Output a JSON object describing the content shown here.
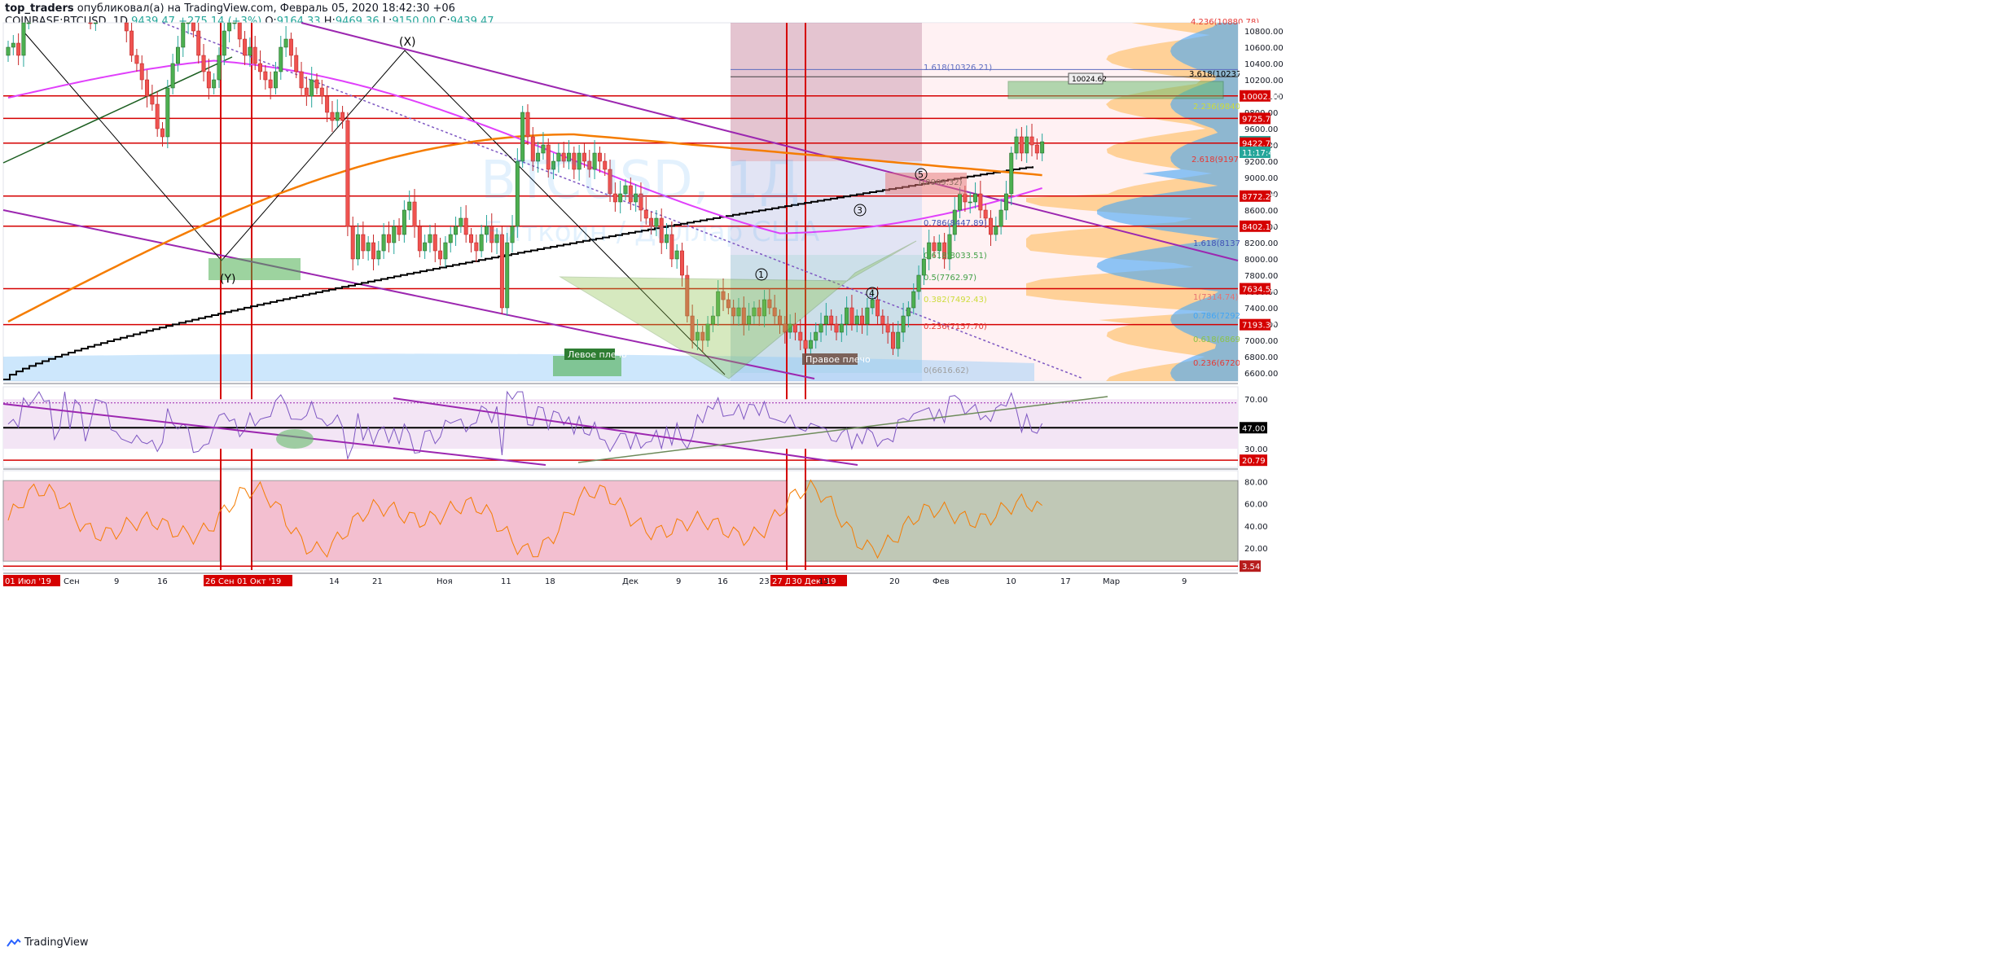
{
  "header": {
    "author": "top_traders",
    "published": "опубликовал(а) на TradingView.com, Февраль 05, 2020 18:42:30 +06",
    "symbol": "COINBASE:BTCUSD, 1D",
    "price": "9439.47",
    "change": "+275.14 (+3%)",
    "o_label": "O:",
    "o_value": "9164.33",
    "h_label": "H:",
    "h_value": "9469.36",
    "l_label": "L:",
    "l_value": "9150.00",
    "c_label": "C:",
    "c_value": "9439.47"
  },
  "footer": {
    "brand": "TradingView"
  },
  "colors": {
    "up": "#4caf50",
    "down": "#ef5350",
    "ma_orange": "#f57c00",
    "ma_magenta": "#e040fb",
    "trend_purple": "#9c27b0",
    "level_red": "#d50000",
    "rsi_bg": "#f3e5f5"
  },
  "watermark": {
    "line1": "BTCUSD, 1Д",
    "line2": "Биткоин / Доллар США"
  },
  "chart_data": [
    {
      "type": "candlestick",
      "panel": "price",
      "ylim": [
        6500,
        10900
      ],
      "y_ticks": [
        "10800.00",
        "10600.00",
        "10400.00",
        "10200.00",
        "10000.00",
        "9800.00",
        "9600.00",
        "9400.00",
        "9200.00",
        "9000.00",
        "8800.00",
        "8600.00",
        "8400.00",
        "8200.00",
        "8000.00",
        "7800.00",
        "7600.00",
        "7400.00",
        "7200.00",
        "7000.00",
        "6800.00",
        "6600.00"
      ],
      "x_ticks": [
        "01 Июл '19",
        "Сен",
        "9",
        "16",
        "26 Сен '19",
        "01 Окт '19",
        "14",
        "21",
        "Ноя",
        "11",
        "18",
        "Дек",
        "9",
        "16",
        "23",
        "27 Дек '19",
        "30 Дек '19",
        "13",
        "20",
        "Фев",
        "10",
        "17",
        "Мар",
        "9"
      ],
      "close": [
        10600,
        10650,
        10500,
        10900,
        11100,
        11400,
        11900,
        12100,
        12300,
        11700,
        11300,
        11800,
        11400,
        11600,
        11700,
        11100,
        10900,
        11200,
        11500,
        11800,
        11600,
        11400,
        11100,
        10800,
        10500,
        10400,
        10200,
        10000,
        9900,
        9600,
        9500,
        10100,
        10400,
        10600,
        10900,
        11100,
        10800,
        10500,
        10300,
        10100,
        10200,
        10500,
        10800,
        10900,
        11000,
        10700,
        10500,
        10600,
        10400,
        10300,
        10200,
        10100,
        10300,
        10600,
        10700,
        10500,
        10300,
        10100,
        10000,
        10200,
        10100,
        10000,
        9800,
        9700,
        9800,
        9700,
        8400,
        8000,
        8300,
        8100,
        8200,
        8000,
        8100,
        8300,
        8200,
        8400,
        8300,
        8600,
        8700,
        8400,
        8100,
        8200,
        8300,
        8100,
        8000,
        8200,
        8300,
        8400,
        8500,
        8300,
        8200,
        8100,
        8300,
        8400,
        8200,
        8300,
        7400,
        8200,
        8400,
        9200,
        9800,
        9500,
        9200,
        9300,
        9400,
        9100,
        9200,
        9300,
        9200,
        9300,
        9100,
        9300,
        9200,
        9100,
        9300,
        9200,
        9100,
        8800,
        8700,
        8800,
        8900,
        8700,
        8800,
        8600,
        8500,
        8400,
        8500,
        8200,
        8300,
        8000,
        8100,
        7800,
        7300,
        7000,
        7100,
        7000,
        7200,
        7300,
        7600,
        7500,
        7400,
        7300,
        7400,
        7200,
        7300,
        7400,
        7300,
        7500,
        7400,
        7300,
        7200,
        7100,
        7200,
        7100,
        7000,
        6900,
        7000,
        7100,
        7200,
        7300,
        7200,
        7100,
        7200,
        7400,
        7200,
        7300,
        7200,
        7400,
        7500,
        7300,
        7200,
        7100,
        6900,
        7100,
        7300,
        7400,
        7600,
        7800,
        8000,
        8200,
        8100,
        8200,
        8000,
        8300,
        8600,
        8800,
        8700,
        8700,
        8800,
        8600,
        8500,
        8300,
        8400,
        8600,
        8800,
        9300,
        9500,
        9300,
        9500,
        9400,
        9300,
        9439.47
      ],
      "levels": [
        {
          "value": 10002.4,
          "label": "10002.40",
          "color": "#d50000"
        },
        {
          "value": 9725.74,
          "label": "9725.74",
          "color": "#d50000"
        },
        {
          "value": 9439.47,
          "label": "9439.47",
          "color": "#26a69a"
        },
        {
          "value": 9422.72,
          "label": "9422.72",
          "color": "#d50000"
        },
        {
          "value": 8772.29,
          "label": "8772.29",
          "color": "#d50000"
        },
        {
          "value": 8402.17,
          "label": "8402.17",
          "color": "#d50000"
        },
        {
          "value": 7634.58,
          "label": "7634.58",
          "color": "#d50000"
        },
        {
          "value": 7193.37,
          "label": "7193.37",
          "color": "#d50000"
        }
      ],
      "countdown": "11:17:41",
      "fib_labels": [
        "4.236(10880.78)",
        "1.618(10326.21)",
        "3.618(10237.93)",
        "2.236(9840.38)",
        "2.618(9197.73)",
        "1(8909.32)",
        "0.786(8447.89)",
        "0.618(8033.51)",
        "1.618(8137.57)",
        "0.5(7762.97)",
        "0.382(7492.43)",
        "1(7314.74)",
        "0.786(7292.14)",
        "0.236(7157.70)",
        "0.618(6869.13)",
        "0.236(6720.04)",
        "0(6616.62)"
      ],
      "annotations": [
        "(X)",
        "(Y)",
        "Левое плечо",
        "Правое плечо",
        "1",
        "3",
        "4",
        "5",
        "10024.62"
      ]
    },
    {
      "type": "line",
      "panel": "rsi",
      "ylim": [
        15,
        80
      ],
      "y_ticks": [
        "70.00",
        "30.00"
      ],
      "levels": [
        {
          "value": 47.0,
          "label": "47.00"
        },
        {
          "value": 20.79,
          "label": "20.79"
        }
      ]
    },
    {
      "type": "line",
      "panel": "oscillator",
      "ylim": [
        0,
        90
      ],
      "y_ticks": [
        "80.00",
        "60.00",
        "40.00",
        "20.00"
      ],
      "levels": [
        {
          "value": 3.54,
          "label": "3.54"
        }
      ]
    }
  ]
}
